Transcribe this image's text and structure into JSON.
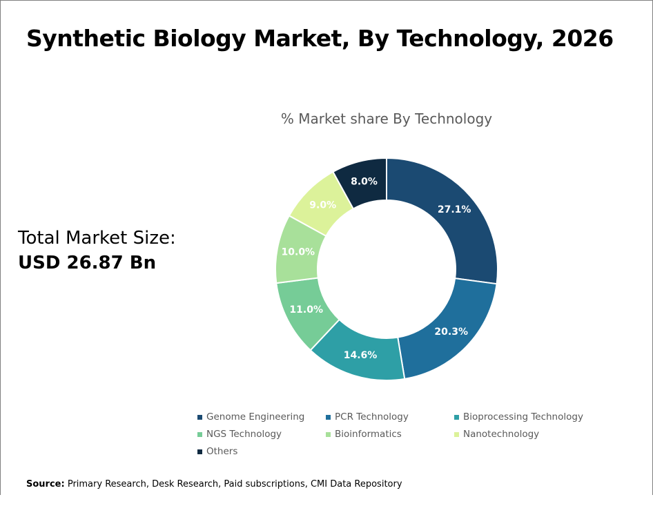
{
  "header": {
    "title": "Synthetic Biology Market, By Technology, 2026"
  },
  "total_market": {
    "label": "Total Market Size:",
    "value": "USD 26.87 Bn"
  },
  "source": {
    "label": "Source:",
    "text": "Primary Research, Desk Research, Paid subscriptions, CMI Data Repository"
  },
  "chart_data": {
    "type": "pie",
    "variant": "donut",
    "title": "% Market share By Technology",
    "legend_position": "bottom",
    "slices": [
      {
        "name": "Genome Engineering",
        "value": 27.1,
        "label": "27.1%",
        "color": "#1b4a72",
        "label_color": "#ffffff"
      },
      {
        "name": "PCR Technology",
        "value": 20.3,
        "label": "20.3%",
        "color": "#1f6f9c",
        "label_color": "#ffffff"
      },
      {
        "name": "Bioprocessing Technology",
        "value": 14.6,
        "label": "14.6%",
        "color": "#2e9fa6",
        "label_color": "#ffffff"
      },
      {
        "name": "NGS Technology",
        "value": 11.0,
        "label": "11.0%",
        "color": "#76cc97",
        "label_color": "#ffffff"
      },
      {
        "name": "Bioinformatics",
        "value": 10.0,
        "label": "10.0%",
        "color": "#a8e09a",
        "label_color": "#ffffff"
      },
      {
        "name": "Nanotechnology",
        "value": 9.0,
        "label": "9.0%",
        "color": "#dcf29a",
        "label_color": "#ffffff"
      },
      {
        "name": "Others",
        "value": 8.0,
        "label": "8.0%",
        "color": "#0f2a41",
        "label_color": "#ffffff"
      }
    ]
  }
}
